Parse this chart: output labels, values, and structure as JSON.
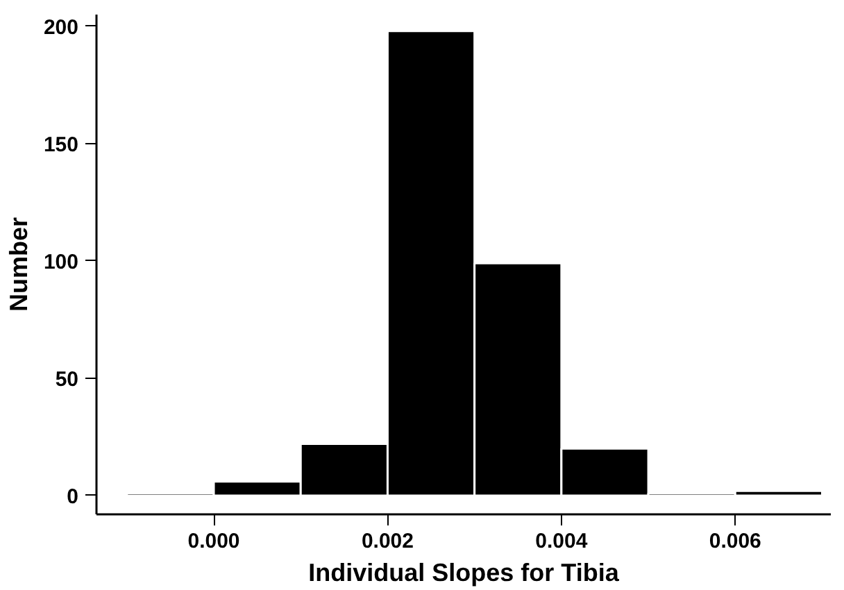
{
  "chart_data": {
    "type": "histogram",
    "xlabel": "Individual Slopes for Tibia",
    "ylabel": "Number",
    "bins": [
      -0.001,
      0.0,
      0.001,
      0.002,
      0.003,
      0.004,
      0.005,
      0.006,
      0.007
    ],
    "values": [
      1,
      6,
      22,
      198,
      99,
      20,
      1,
      2
    ],
    "color": "#000000",
    "xlim": [
      -0.00135,
      0.0071
    ],
    "ylim": [
      -8,
      205
    ],
    "xticks": [
      {
        "value": 0.0,
        "label": "0.000"
      },
      {
        "value": 0.002,
        "label": "0.002"
      },
      {
        "value": 0.004,
        "label": "0.004"
      },
      {
        "value": 0.006,
        "label": "0.006"
      }
    ],
    "yticks": [
      0,
      50,
      100,
      150,
      200
    ],
    "grid": false
  }
}
